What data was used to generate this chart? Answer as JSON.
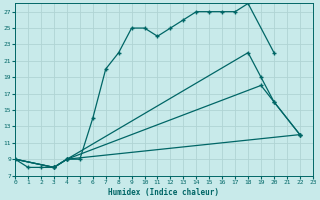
{
  "xlabel": "Humidex (Indice chaleur)",
  "bg_color": "#c8eaea",
  "grid_color": "#b0d4d4",
  "line_color": "#006666",
  "xlim": [
    0,
    23
  ],
  "ylim": [
    7,
    28
  ],
  "yticks": [
    7,
    9,
    11,
    13,
    15,
    17,
    19,
    21,
    23,
    25,
    27
  ],
  "xticks": [
    0,
    1,
    2,
    3,
    4,
    5,
    6,
    7,
    8,
    9,
    10,
    11,
    12,
    13,
    14,
    15,
    16,
    17,
    18,
    19,
    20,
    21,
    22,
    23
  ],
  "line1_x": [
    0,
    1,
    2,
    3,
    4,
    5,
    6,
    7,
    8,
    9,
    10,
    11,
    12,
    13,
    14,
    15,
    16,
    17,
    18,
    20
  ],
  "line1_y": [
    9,
    8,
    8,
    8,
    9,
    9,
    14,
    20,
    22,
    25,
    25,
    24,
    25,
    26,
    27,
    27,
    27,
    27,
    28,
    22
  ],
  "line2_x": [
    0,
    3,
    4,
    18,
    19,
    20,
    22
  ],
  "line2_y": [
    9,
    8,
    9,
    22,
    19,
    16,
    12
  ],
  "line3_x": [
    0,
    3,
    4,
    19,
    20,
    22
  ],
  "line3_y": [
    9,
    8,
    9,
    18,
    16,
    12
  ],
  "line4_x": [
    0,
    3,
    4,
    22
  ],
  "line4_y": [
    9,
    8,
    9,
    12
  ]
}
